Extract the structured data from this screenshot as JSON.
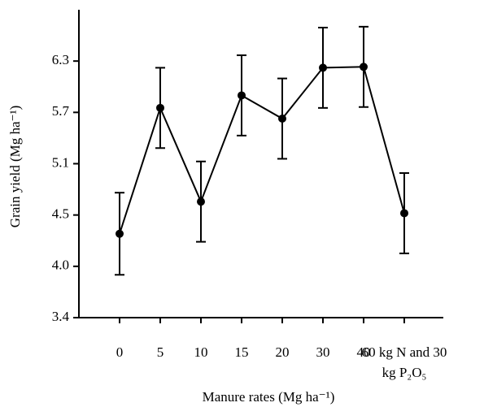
{
  "chart_data": {
    "type": "line",
    "x_label": "Manure rates (Mg ha⁻¹)",
    "y_label": "Grain yield (Mg ha⁻¹)",
    "categories": [
      "0",
      "5",
      "10",
      "15",
      "20",
      "30",
      "40",
      "60 kg N and 30 kg P₂O₅"
    ],
    "series": [
      {
        "color": "#000000",
        "values": [
          4.34,
          5.75,
          4.7,
          5.89,
          5.63,
          6.2,
          6.21,
          4.57
        ],
        "errors": [
          0.46,
          0.45,
          0.45,
          0.45,
          0.45,
          0.45,
          0.45,
          0.45
        ]
      }
    ],
    "ylim": [
      3.4,
      6.85
    ],
    "yticks": [
      3.4,
      {
        "value": 3.975,
        "label": "4.0"
      },
      {
        "value": 4.55,
        "label": "4.5"
      },
      {
        "value": 5.125,
        "label": "5.1"
      },
      5.7,
      {
        "value": 6.275,
        "label": "6.3"
      }
    ],
    "grid": false
  }
}
